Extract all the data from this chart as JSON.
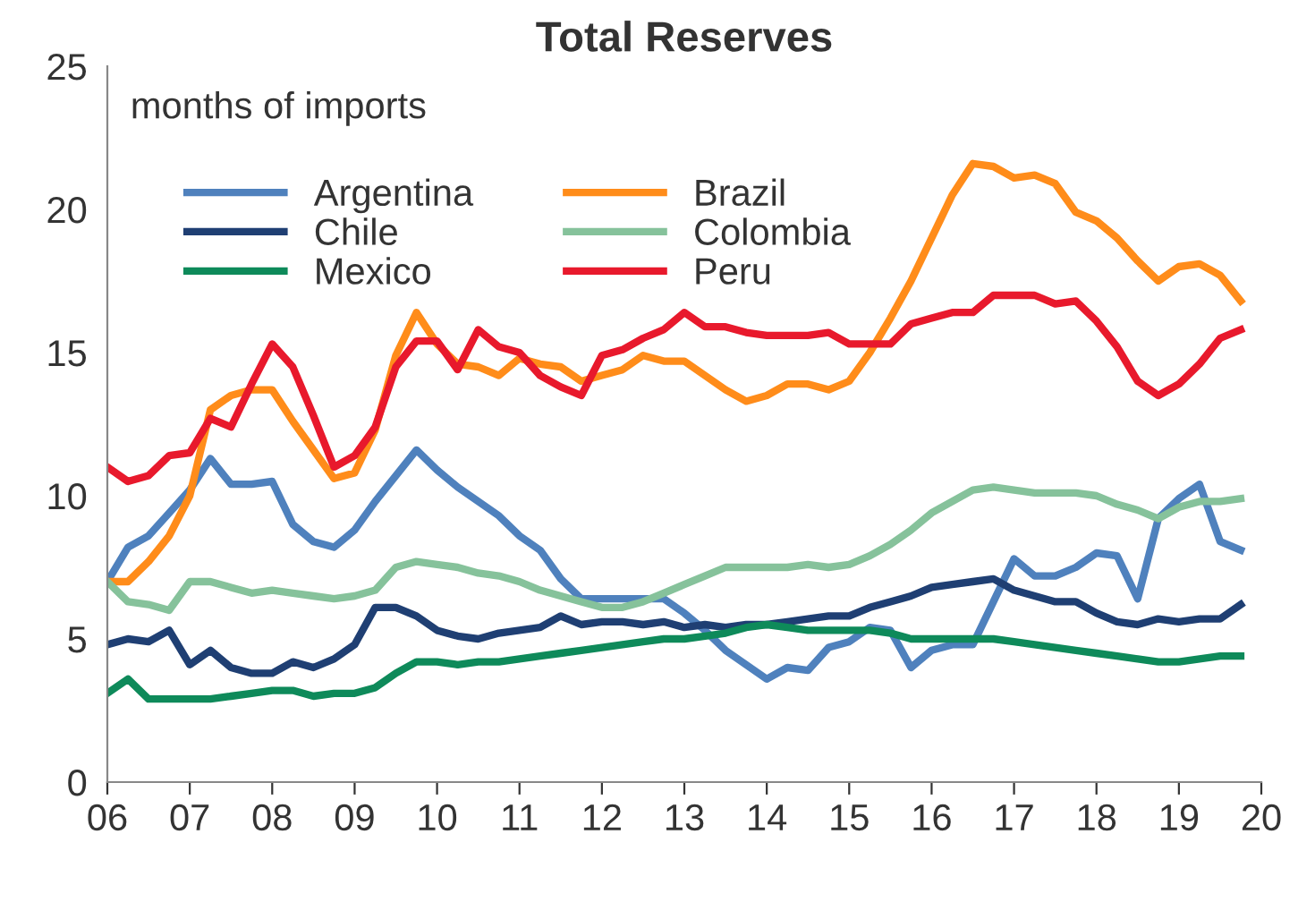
{
  "chart_data": {
    "type": "line",
    "title": "Total Reserves",
    "ylabel": "months of imports",
    "x": [
      2006,
      2006.25,
      2006.5,
      2006.75,
      2007,
      2007.25,
      2007.5,
      2007.75,
      2008,
      2008.25,
      2008.5,
      2008.75,
      2009,
      2009.25,
      2009.5,
      2009.75,
      2010,
      2010.25,
      2010.5,
      2010.75,
      2011,
      2011.25,
      2011.5,
      2011.75,
      2012,
      2012.25,
      2012.5,
      2012.75,
      2013,
      2013.25,
      2013.5,
      2013.75,
      2014,
      2014.25,
      2014.5,
      2014.75,
      2015,
      2015.25,
      2015.5,
      2015.75,
      2016,
      2016.25,
      2016.5,
      2016.75,
      2017,
      2017.25,
      2017.5,
      2017.75,
      2018,
      2018.25,
      2018.5,
      2018.75,
      2019,
      2019.25,
      2019.5,
      2019.75
    ],
    "series": [
      {
        "name": "Argentina",
        "color": "#4f81bd",
        "values": [
          7.0,
          8.2,
          8.6,
          9.4,
          10.2,
          11.3,
          10.4,
          10.4,
          10.5,
          9.0,
          8.4,
          8.2,
          8.8,
          9.8,
          10.7,
          11.6,
          10.9,
          10.3,
          9.8,
          9.3,
          8.6,
          8.1,
          7.1,
          6.4,
          6.4,
          6.4,
          6.4,
          6.4,
          5.9,
          5.3,
          4.6,
          4.1,
          3.6,
          4.0,
          3.9,
          4.7,
          4.9,
          5.4,
          5.3,
          4.0,
          4.6,
          4.8,
          4.8,
          6.3,
          7.8,
          7.2,
          7.2,
          7.5,
          8.0,
          7.9,
          6.4,
          9.2,
          9.9,
          10.4,
          8.4,
          8.1
        ]
      },
      {
        "name": "Brazil",
        "color": "#ff8c1a",
        "values": [
          7.0,
          7.0,
          7.7,
          8.6,
          10.0,
          13.0,
          13.5,
          13.7,
          13.7,
          12.6,
          11.6,
          10.6,
          10.8,
          12.3,
          14.9,
          16.4,
          15.3,
          14.6,
          14.5,
          14.2,
          14.8,
          14.6,
          14.5,
          14.0,
          14.2,
          14.4,
          14.9,
          14.7,
          14.7,
          14.2,
          13.7,
          13.3,
          13.5,
          13.9,
          13.9,
          13.7,
          14.0,
          15.0,
          16.2,
          17.5,
          19.0,
          20.5,
          21.6,
          21.5,
          21.1,
          21.2,
          20.9,
          19.9,
          19.6,
          19.0,
          18.2,
          17.5,
          18.0,
          18.1,
          17.7,
          16.8
        ]
      },
      {
        "name": "Chile",
        "color": "#1f3f73",
        "values": [
          4.8,
          5.0,
          4.9,
          5.3,
          4.1,
          4.6,
          4.0,
          3.8,
          3.8,
          4.2,
          4.0,
          4.3,
          4.8,
          6.1,
          6.1,
          5.8,
          5.3,
          5.1,
          5.0,
          5.2,
          5.3,
          5.4,
          5.8,
          5.5,
          5.6,
          5.6,
          5.5,
          5.6,
          5.4,
          5.5,
          5.4,
          5.5,
          5.5,
          5.6,
          5.7,
          5.8,
          5.8,
          6.1,
          6.3,
          6.5,
          6.8,
          6.9,
          7.0,
          7.1,
          6.7,
          6.5,
          6.3,
          6.3,
          5.9,
          5.6,
          5.5,
          5.7,
          5.6,
          5.7,
          5.7,
          6.2
        ]
      },
      {
        "name": "Colombia",
        "color": "#86c29b",
        "values": [
          7.0,
          6.3,
          6.2,
          6.0,
          7.0,
          7.0,
          6.8,
          6.6,
          6.7,
          6.6,
          6.5,
          6.4,
          6.5,
          6.7,
          7.5,
          7.7,
          7.6,
          7.5,
          7.3,
          7.2,
          7.0,
          6.7,
          6.5,
          6.3,
          6.1,
          6.1,
          6.3,
          6.6,
          6.9,
          7.2,
          7.5,
          7.5,
          7.5,
          7.5,
          7.6,
          7.5,
          7.6,
          7.9,
          8.3,
          8.8,
          9.4,
          9.8,
          10.2,
          10.3,
          10.2,
          10.1,
          10.1,
          10.1,
          10.0,
          9.7,
          9.5,
          9.2,
          9.6,
          9.8,
          9.8,
          9.9
        ]
      },
      {
        "name": "Mexico",
        "color": "#0e8a5a",
        "values": [
          3.1,
          3.6,
          2.9,
          2.9,
          2.9,
          2.9,
          3.0,
          3.1,
          3.2,
          3.2,
          3.0,
          3.1,
          3.1,
          3.3,
          3.8,
          4.2,
          4.2,
          4.1,
          4.2,
          4.2,
          4.3,
          4.4,
          4.5,
          4.6,
          4.7,
          4.8,
          4.9,
          5.0,
          5.0,
          5.1,
          5.2,
          5.4,
          5.5,
          5.4,
          5.3,
          5.3,
          5.3,
          5.3,
          5.2,
          5.0,
          5.0,
          5.0,
          5.0,
          5.0,
          4.9,
          4.8,
          4.7,
          4.6,
          4.5,
          4.4,
          4.3,
          4.2,
          4.2,
          4.3,
          4.4,
          4.4
        ]
      },
      {
        "name": "Peru",
        "color": "#e8192c",
        "values": [
          11.0,
          10.5,
          10.7,
          11.4,
          11.5,
          12.7,
          12.4,
          13.9,
          15.3,
          14.5,
          12.8,
          11.0,
          11.4,
          12.4,
          14.5,
          15.4,
          15.4,
          14.4,
          15.8,
          15.2,
          15.0,
          14.2,
          13.8,
          13.5,
          14.9,
          15.1,
          15.5,
          15.8,
          16.4,
          15.9,
          15.9,
          15.7,
          15.6,
          15.6,
          15.6,
          15.7,
          15.3,
          15.3,
          15.3,
          16.0,
          16.2,
          16.4,
          16.4,
          17.0,
          17.0,
          17.0,
          16.7,
          16.8,
          16.1,
          15.2,
          14.0,
          13.5,
          13.9,
          14.6,
          15.5,
          15.8
        ]
      }
    ],
    "xlim": [
      2006,
      2020
    ],
    "xticks": [
      {
        "value": 2006,
        "label": "06"
      },
      {
        "value": 2007,
        "label": "07"
      },
      {
        "value": 2008,
        "label": "08"
      },
      {
        "value": 2009,
        "label": "09"
      },
      {
        "value": 2010,
        "label": "10"
      },
      {
        "value": 2011,
        "label": "11"
      },
      {
        "value": 2012,
        "label": "12"
      },
      {
        "value": 2013,
        "label": "13"
      },
      {
        "value": 2014,
        "label": "14"
      },
      {
        "value": 2015,
        "label": "15"
      },
      {
        "value": 2016,
        "label": "16"
      },
      {
        "value": 2017,
        "label": "17"
      },
      {
        "value": 2018,
        "label": "18"
      },
      {
        "value": 2019,
        "label": "19"
      },
      {
        "value": 2020,
        "label": "20"
      }
    ],
    "ylim": [
      0,
      25
    ],
    "yticks": [
      0,
      5,
      10,
      15,
      20,
      25
    ],
    "legend": "top left",
    "marker": "none",
    "line_style": "solid",
    "grid": false
  }
}
